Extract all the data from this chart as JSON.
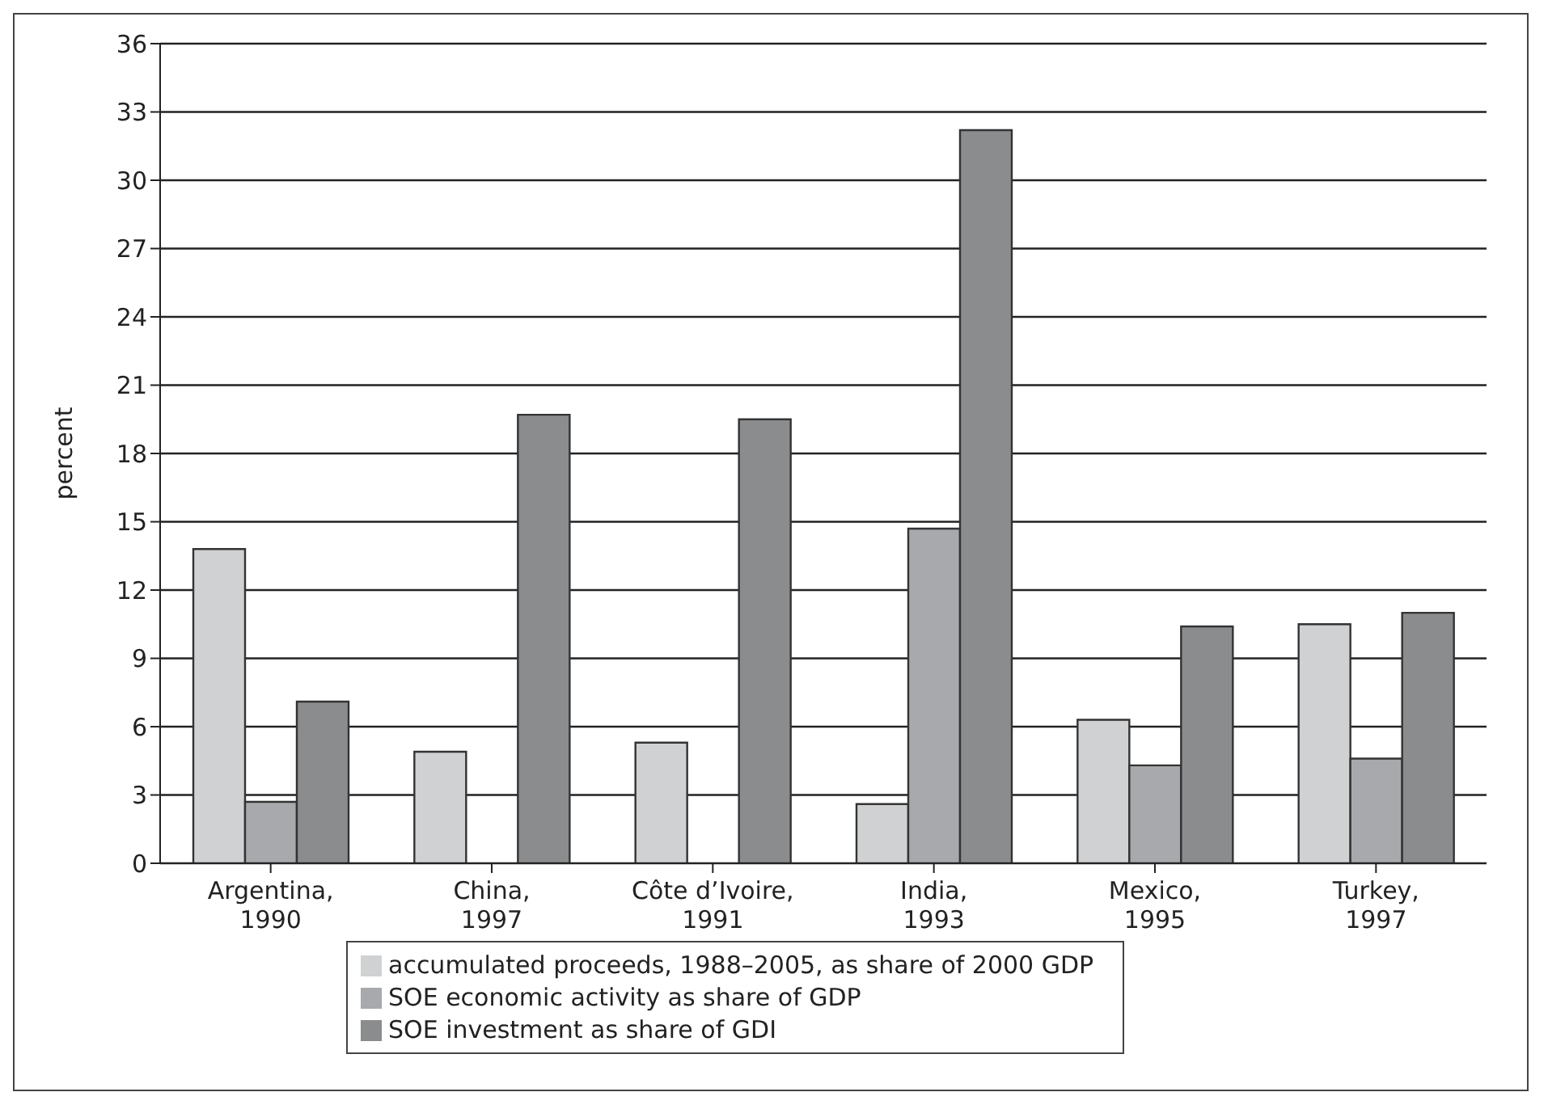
{
  "chart_data": {
    "type": "bar",
    "ylabel": "percent",
    "categories": [
      "Argentina, 1990",
      "China, 1997",
      "Côte d’Ivoire, 1991",
      "India, 1993",
      "Mexico, 1995",
      "Turkey, 1997"
    ],
    "series": [
      {
        "name": "accumulated proceeds, 1988–2005, as share of 2000 GDP",
        "color": "#d0d1d3",
        "values": [
          13.8,
          4.9,
          5.3,
          2.6,
          6.3,
          10.5
        ]
      },
      {
        "name": "SOE economic activity as share of GDP",
        "color": "#a8a9ac",
        "values": [
          2.7,
          null,
          null,
          14.7,
          4.3,
          4.6
        ]
      },
      {
        "name": "SOE investment as share of GDI",
        "color": "#8b8c8e",
        "values": [
          7.1,
          19.7,
          19.5,
          32.2,
          10.4,
          11.0
        ]
      }
    ],
    "ylim": [
      0,
      36
    ],
    "yticks": [
      0,
      3,
      6,
      9,
      12,
      15,
      18,
      21,
      24,
      27,
      30,
      33,
      36
    ],
    "grid": "y",
    "legend": "bottom"
  }
}
